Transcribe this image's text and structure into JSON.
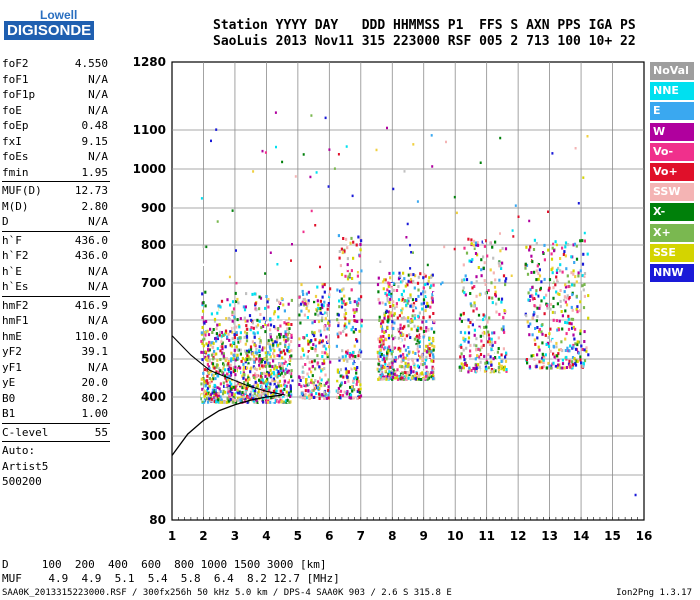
{
  "logo": {
    "line1": "Lowell",
    "line2": "DIGISONDE"
  },
  "header": {
    "line1": "Station YYYY DAY   DDD HHMMSS P1  FFS S AXN PPS IGA PS",
    "line2": "SaoLuis 2013 Nov11 315 223000 RSF 005 2 713 100 10+ 22"
  },
  "params": {
    "group1": [
      {
        "k": "foF2",
        "v": "4.550"
      },
      {
        "k": "foF1",
        "v": "N/A"
      },
      {
        "k": "foF1p",
        "v": "N/A"
      },
      {
        "k": "foE",
        "v": "N/A"
      },
      {
        "k": "foEp",
        "v": "0.48"
      },
      {
        "k": "fxI",
        "v": "9.15"
      },
      {
        "k": "foEs",
        "v": "N/A"
      },
      {
        "k": "fmin",
        "v": "1.95"
      }
    ],
    "group2": [
      {
        "k": "MUF(D)",
        "v": "12.73"
      },
      {
        "k": "M(D)",
        "v": "2.80"
      },
      {
        "k": "D",
        "v": "N/A"
      }
    ],
    "group3": [
      {
        "k": "h`F",
        "v": "436.0"
      },
      {
        "k": "h`F2",
        "v": "436.0"
      },
      {
        "k": "h`E",
        "v": "N/A"
      },
      {
        "k": "h`Es",
        "v": "N/A"
      }
    ],
    "group4": [
      {
        "k": "hmF2",
        "v": "416.9"
      },
      {
        "k": "hmF1",
        "v": "N/A"
      },
      {
        "k": "hmE",
        "v": "110.0"
      },
      {
        "k": "yF2",
        "v": "39.1"
      },
      {
        "k": "yF1",
        "v": "N/A"
      },
      {
        "k": "yE",
        "v": "20.0"
      },
      {
        "k": "B0",
        "v": "80.2"
      },
      {
        "k": "B1",
        "v": "1.00"
      }
    ],
    "group5": [
      {
        "k": "C-level",
        "v": "55"
      }
    ],
    "group6": [
      "Auto:",
      "Artist5",
      "500200"
    ]
  },
  "legend": [
    {
      "label": "NoVal",
      "bg": "#9e9e9e",
      "fg": "#ffffff"
    },
    {
      "label": "NNE",
      "bg": "#00e0f0",
      "fg": "#ffffff"
    },
    {
      "label": "E",
      "bg": "#3aa8f0",
      "fg": "#ffffff"
    },
    {
      "label": "W",
      "bg": "#b0009e",
      "fg": "#ffffff"
    },
    {
      "label": "Vo-",
      "bg": "#f0308c",
      "fg": "#ffffff"
    },
    {
      "label": "Vo+",
      "bg": "#e0102a",
      "fg": "#ffffff"
    },
    {
      "label": "SSW",
      "bg": "#f4b4b4",
      "fg": "#ffffff"
    },
    {
      "label": "X-",
      "bg": "#00800a",
      "fg": "#ffffff"
    },
    {
      "label": "X+",
      "bg": "#7ab850",
      "fg": "#ffffff"
    },
    {
      "label": "SSE",
      "bg": "#d4d400",
      "fg": "#ffffff"
    },
    {
      "label": "NNW",
      "bg": "#1a1ad8",
      "fg": "#ffffff"
    }
  ],
  "dtable": {
    "line1": "D     100  200  400  600  800 1000 1500 3000 [km]",
    "line2": "MUF    4.9  4.9  5.1  5.4  5.8  6.4  8.2 12.7 [MHz]"
  },
  "footer": "SAA0K_2013315223000.RSF / 300fx256h 50 kHz 5.0 km / DPS-4 SAA0K 903 / 2.6 S 315.8 E",
  "version": "Ion2Png 1.3.17",
  "chart_data": {
    "type": "scatter",
    "x_ticks": [
      "1",
      "2",
      "3",
      "4",
      "5",
      "6",
      "7",
      "8",
      "9",
      "10",
      "11",
      "12",
      "13",
      "14",
      "15",
      "16"
    ],
    "y_ticks": [
      "80",
      "200",
      "300",
      "400",
      "500",
      "600",
      "700",
      "800",
      "900",
      "1000",
      "1100",
      "1280"
    ],
    "xlim": [
      1,
      16
    ],
    "ylim": [
      80,
      1280
    ],
    "grid": true,
    "clusters": [
      {
        "f": [
          1.9,
          4.8
        ],
        "h": [
          390,
          560
        ],
        "n": 900
      },
      {
        "f": [
          1.9,
          4.8
        ],
        "h": [
          560,
          680
        ],
        "n": 200
      },
      {
        "f": [
          5.0,
          6.0
        ],
        "h": [
          400,
          700
        ],
        "n": 260
      },
      {
        "f": [
          6.2,
          7.0
        ],
        "h": [
          400,
          830
        ],
        "n": 230
      },
      {
        "f": [
          7.5,
          9.3
        ],
        "h": [
          450,
          730
        ],
        "n": 650
      },
      {
        "f": [
          10.1,
          11.6
        ],
        "h": [
          470,
          820
        ],
        "n": 300
      },
      {
        "f": [
          12.2,
          14.2
        ],
        "h": [
          480,
          820
        ],
        "n": 380
      }
    ],
    "trace": [
      [
        1.0,
        250
      ],
      [
        1.5,
        305
      ],
      [
        2.0,
        340
      ],
      [
        2.5,
        365
      ],
      [
        3.0,
        380
      ],
      [
        3.5,
        392
      ],
      [
        4.0,
        400
      ],
      [
        4.5,
        405
      ]
    ],
    "trace_upper": [
      [
        1.0,
        560
      ],
      [
        1.6,
        510
      ],
      [
        2.2,
        470
      ],
      [
        2.8,
        450
      ],
      [
        3.4,
        430
      ],
      [
        4.0,
        415
      ],
      [
        4.6,
        405
      ]
    ]
  }
}
